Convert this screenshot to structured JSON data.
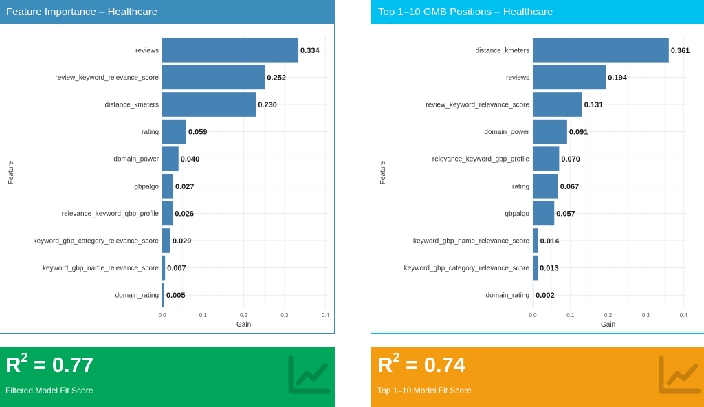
{
  "panels": [
    {
      "title": "Feature Importance – Healthcare",
      "header_color": "#3c8dbc"
    },
    {
      "title": "Top 1–10 GMB Positions – Healthcare",
      "header_color": "#00c0ef"
    }
  ],
  "chart_data": [
    {
      "type": "bar",
      "orientation": "horizontal",
      "categories": [
        "reviews",
        "review_keyword_relevance_score",
        "distance_kmeters",
        "rating",
        "domain_power",
        "gbpalgo",
        "relevance_keyword_gbp_profile",
        "keyword_gbp_category_relevance_score",
        "keyword_gbp_name_relevance_score",
        "domain_rating"
      ],
      "values": [
        0.334,
        0.252,
        0.23,
        0.059,
        0.04,
        0.027,
        0.026,
        0.02,
        0.007,
        0.005
      ],
      "value_labels": [
        "0.334",
        "0.252",
        "0.230",
        "0.059",
        "0.040",
        "0.027",
        "0.026",
        "0.020",
        "0.007",
        "0.005"
      ],
      "xlabel": "Gain",
      "ylabel": "Feature",
      "xlim": [
        0,
        0.4
      ],
      "xticks": [
        "0.0",
        "0.1",
        "0.2",
        "0.3",
        "0.4"
      ],
      "bar_color": "#4682b4",
      "grid": true
    },
    {
      "type": "bar",
      "orientation": "horizontal",
      "categories": [
        "distance_kmeters",
        "reviews",
        "review_keyword_relevance_score",
        "domain_power",
        "relevance_keyword_gbp_profile",
        "rating",
        "gbpalgo",
        "keyword_gbp_name_relevance_score",
        "keyword_gbp_category_relevance_score",
        "domain_rating"
      ],
      "values": [
        0.361,
        0.194,
        0.131,
        0.091,
        0.07,
        0.067,
        0.057,
        0.014,
        0.013,
        0.002
      ],
      "value_labels": [
        "0.361",
        "0.194",
        "0.131",
        "0.091",
        "0.070",
        "0.067",
        "0.057",
        "0.014",
        "0.013",
        "0.002"
      ],
      "xlabel": "Gain",
      "ylabel": "Feature",
      "xlim": [
        0,
        0.4
      ],
      "xticks": [
        "0.0",
        "0.1",
        "0.2",
        "0.3",
        "0.4"
      ],
      "bar_color": "#4682b4",
      "grid": true
    }
  ],
  "value_boxes": [
    {
      "value_prefix": "R",
      "value_sup": "2",
      "value_suffix": " = 0.77",
      "subtitle": "Filtered Model Fit Score",
      "color": "#00a65a",
      "icon": "line-chart-icon"
    },
    {
      "value_prefix": "R",
      "value_sup": "2",
      "value_suffix": " = 0.74",
      "subtitle": "Top 1–10 Model Fit Score",
      "color": "#f39c12",
      "icon": "line-chart-icon"
    }
  ]
}
